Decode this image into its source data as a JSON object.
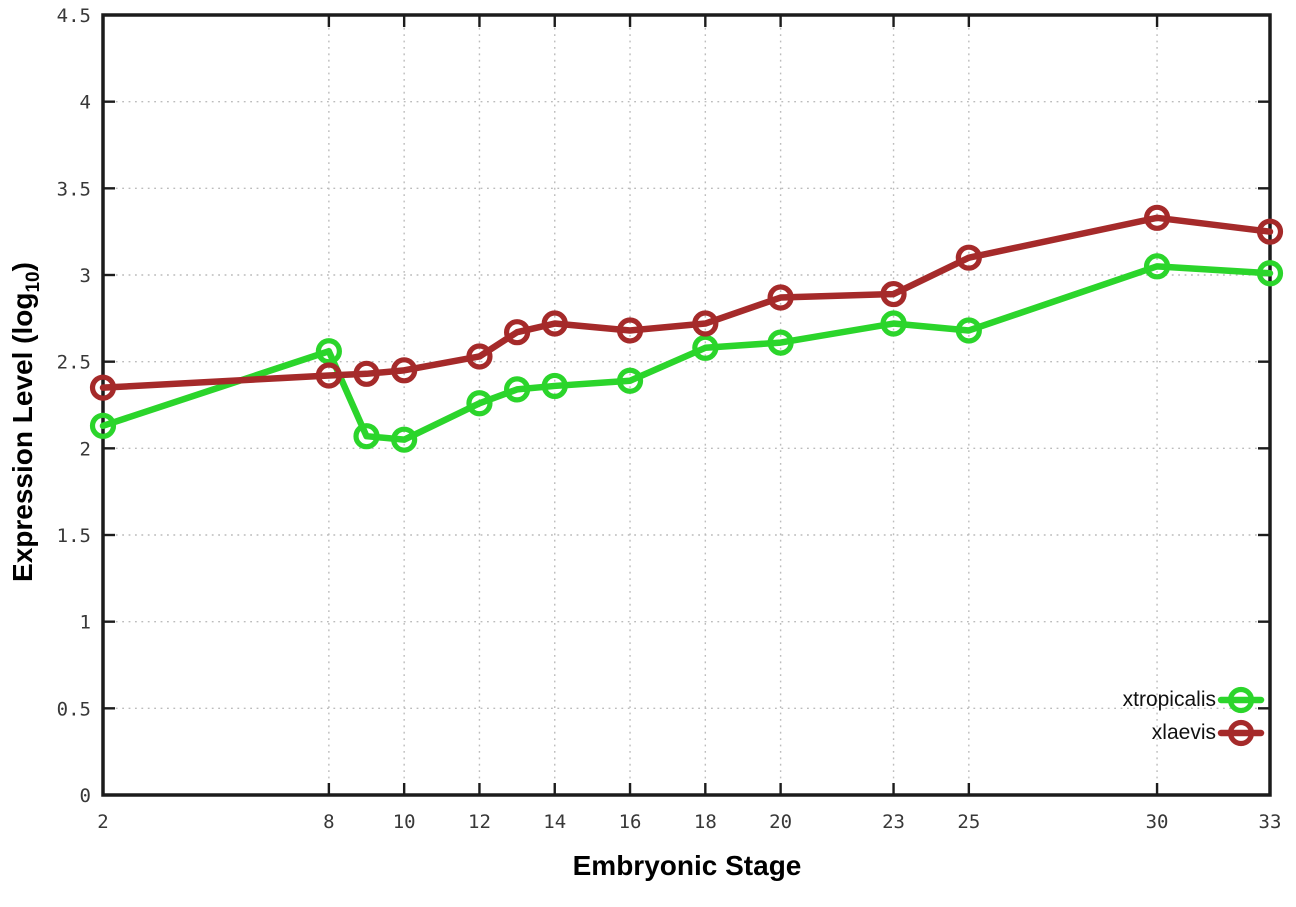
{
  "chart_data": {
    "type": "line",
    "title": "",
    "xlabel": "Embryonic Stage",
    "ylabel_prefix": "Expression Level (log",
    "ylabel_subscript": "10",
    "ylabel_suffix": ")",
    "x_label_name": "Embryonic Stage",
    "xlim": [
      2,
      33
    ],
    "ylim": [
      0,
      4.5
    ],
    "grid": true,
    "legend_position": "bottom-right",
    "x_tick_values": [
      2,
      8,
      10,
      12,
      14,
      16,
      18,
      20,
      23,
      25,
      30,
      33
    ],
    "x_tick_labels": [
      "2",
      "8",
      "10",
      "12",
      "14",
      "16",
      "18",
      "20",
      "23",
      "25",
      "30",
      "33"
    ],
    "y_tick_values": [
      0,
      0.5,
      1,
      1.5,
      2,
      2.5,
      3,
      3.5,
      4,
      4.5
    ],
    "y_tick_labels": [
      "0",
      "0.5",
      "1",
      "1.5",
      "2",
      "2.5",
      "3",
      "3.5",
      "4",
      "4.5"
    ],
    "x": [
      2,
      8,
      9,
      10,
      12,
      13,
      14,
      16,
      18,
      20,
      23,
      25,
      30,
      33
    ],
    "series": [
      {
        "name": "xtropicalis",
        "color": "#2bd52b",
        "values": [
          2.13,
          2.56,
          2.07,
          2.05,
          2.26,
          2.34,
          2.36,
          2.39,
          2.58,
          2.61,
          2.72,
          2.68,
          3.05,
          3.01
        ]
      },
      {
        "name": "xlaevis",
        "color": "#a52a2a",
        "values": [
          2.35,
          2.42,
          2.43,
          2.45,
          2.53,
          2.67,
          2.72,
          2.68,
          2.72,
          2.87,
          2.89,
          3.1,
          3.33,
          3.25
        ]
      }
    ],
    "style_colors": {
      "plot_border": "#1c1c1c",
      "grid": "#bcbcbc",
      "tick_text": "#383838",
      "background": "#ffffff"
    }
  }
}
